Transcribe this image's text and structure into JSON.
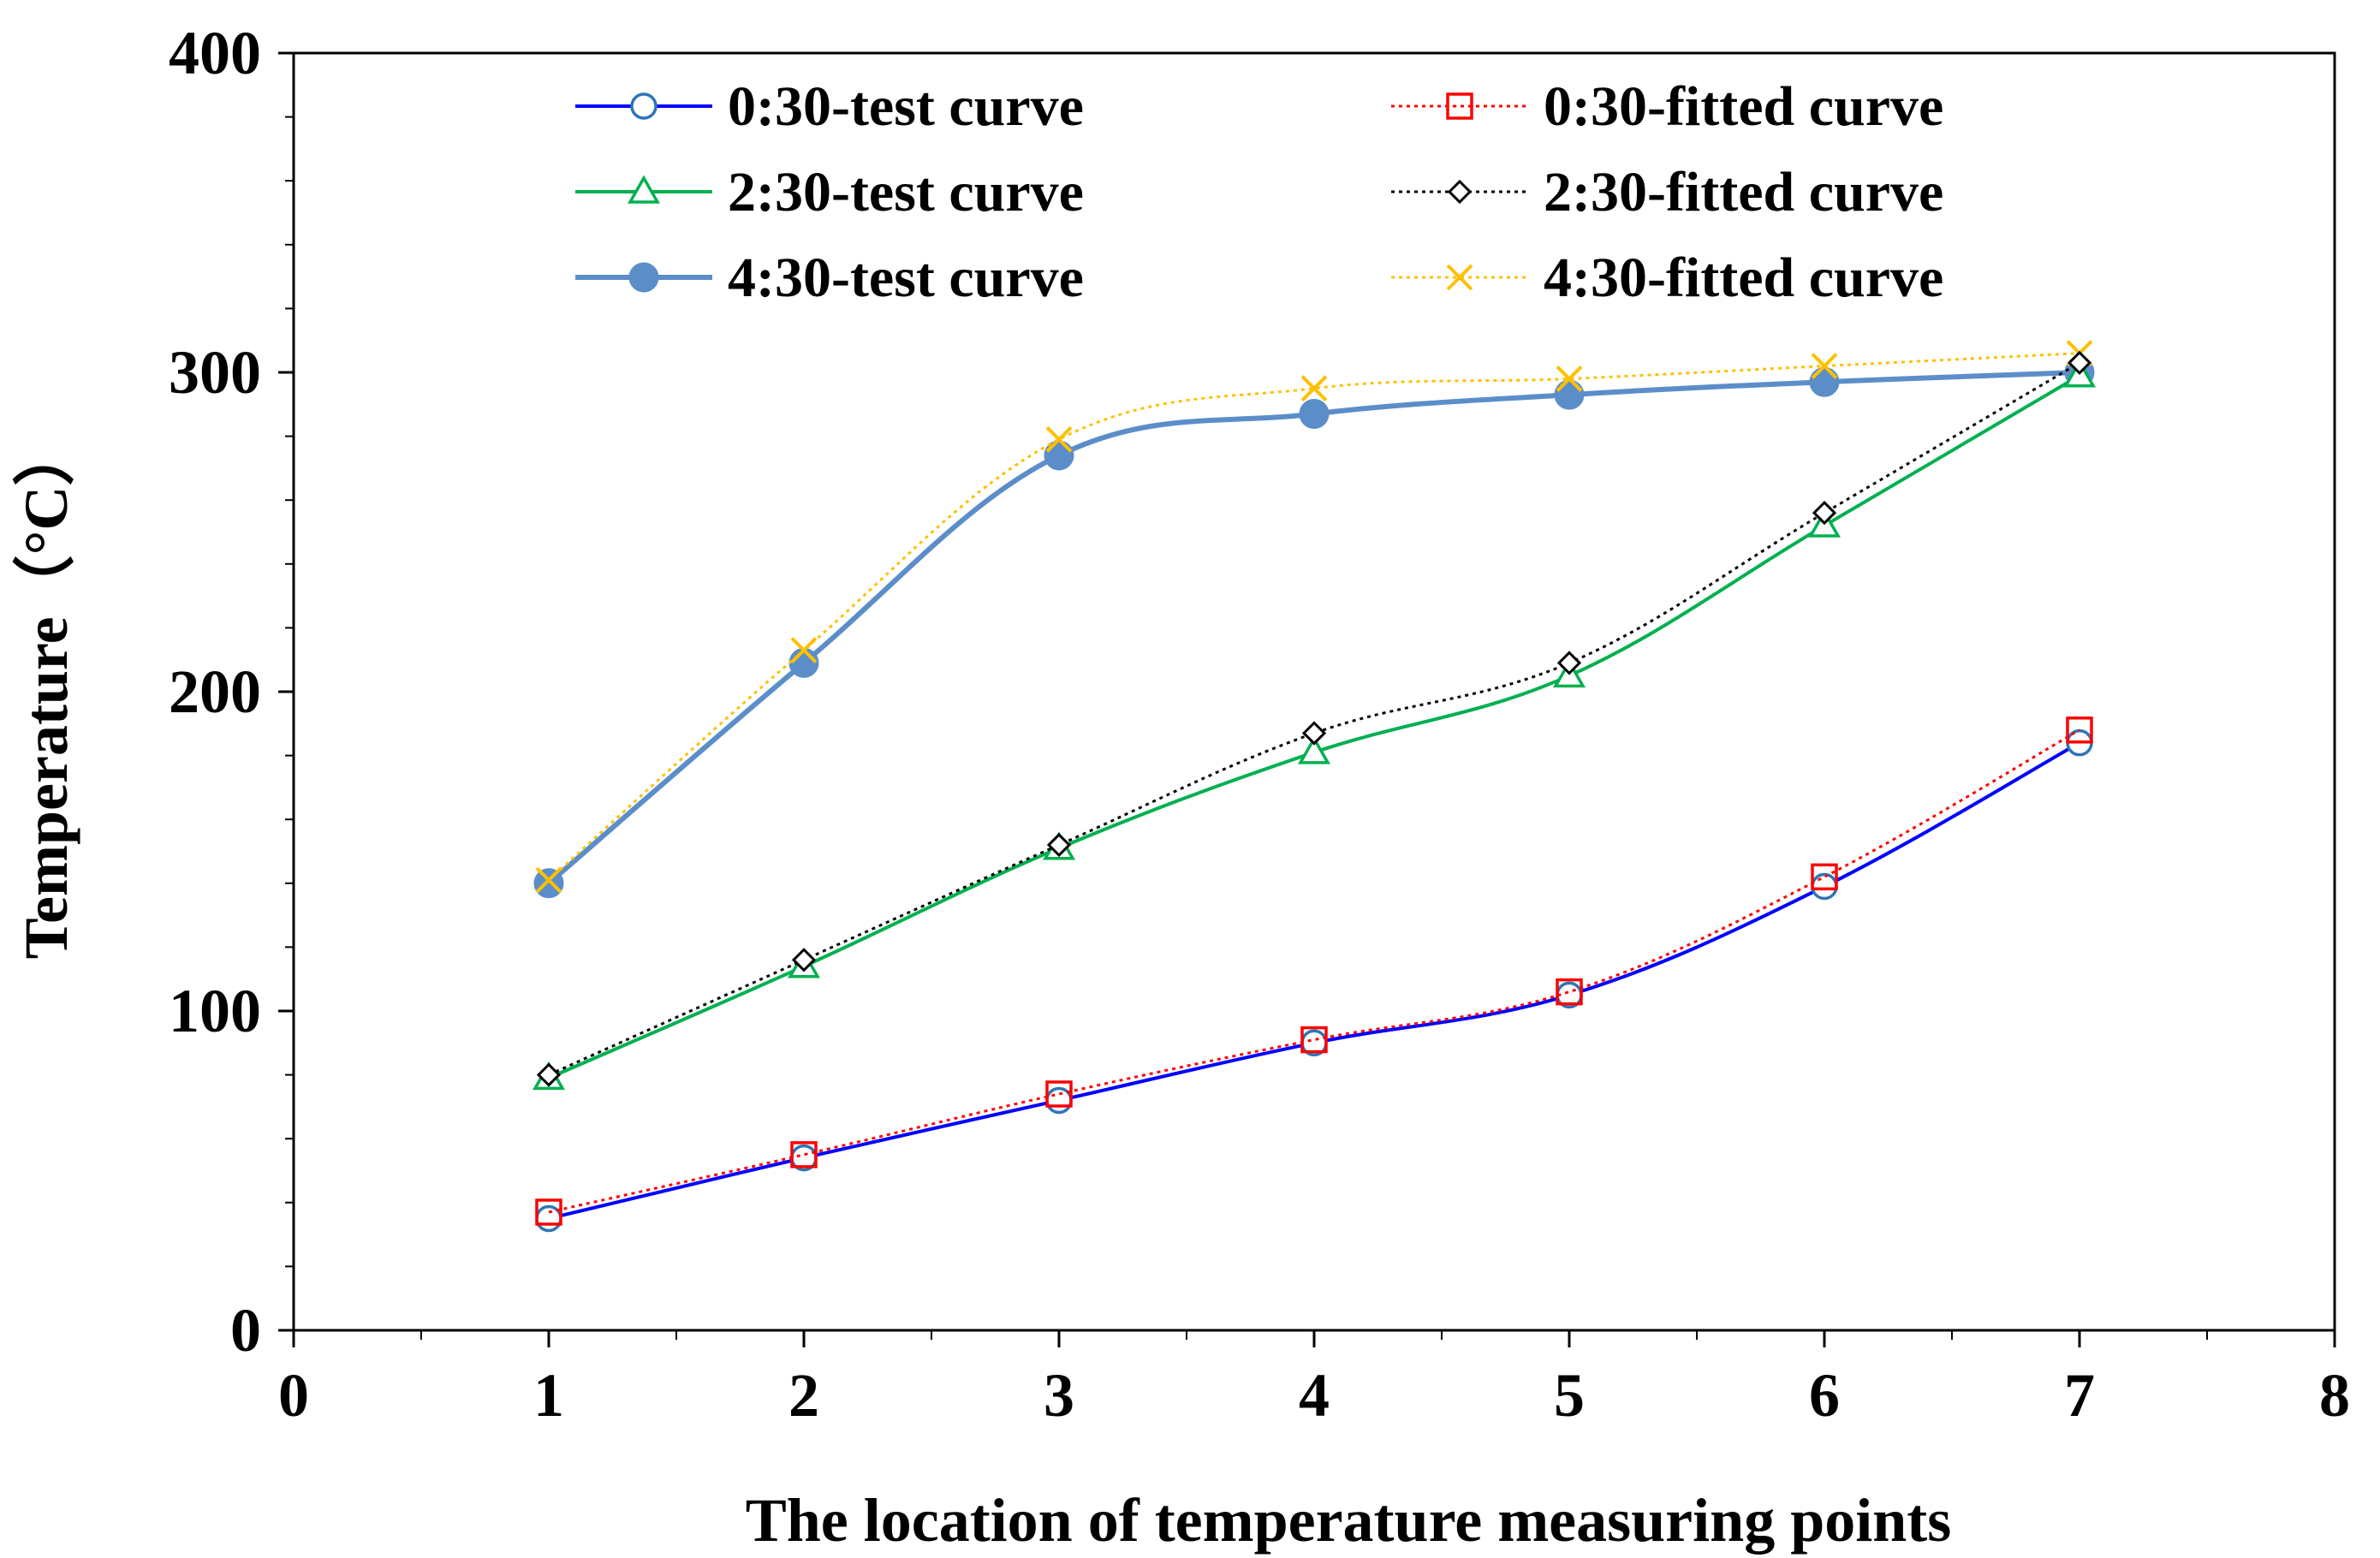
{
  "chart_data": {
    "type": "line",
    "title": "",
    "xlabel": "The location of temperature measuring points",
    "ylabel": "Temperature（°C）",
    "xlim": [
      0,
      8
    ],
    "ylim": [
      0,
      400
    ],
    "x_ticks": [
      "0",
      "1",
      "2",
      "3",
      "4",
      "5",
      "6",
      "7",
      "8"
    ],
    "y_ticks": [
      "0",
      "100",
      "200",
      "300",
      "400"
    ],
    "grid": false,
    "legend_position": "top",
    "x": [
      1,
      2,
      3,
      4,
      5,
      6,
      7
    ],
    "series": [
      {
        "name": "0:30-test curve",
        "values": [
          35,
          54,
          72,
          90,
          105,
          139,
          184
        ],
        "color": "#0000ff",
        "marker": "circle-open",
        "marker_color": "#2e75b6",
        "dash": "solid"
      },
      {
        "name": "0:30-fitted curve",
        "values": [
          37,
          55,
          74,
          91,
          106,
          142,
          188
        ],
        "color": "#ff0000",
        "marker": "square-open",
        "marker_color": "#ff0000",
        "dash": "dotted"
      },
      {
        "name": "2:30-test curve",
        "values": [
          79,
          114,
          151,
          181,
          205,
          252,
          299
        ],
        "color": "#00b050",
        "marker": "triangle-open",
        "marker_color": "#00b050",
        "dash": "solid"
      },
      {
        "name": "2:30-fitted curve",
        "values": [
          80,
          116,
          152,
          187,
          209,
          256,
          303
        ],
        "color": "#000000",
        "marker": "diamond-open",
        "marker_color": "#000000",
        "dash": "dotted"
      },
      {
        "name": "4:30-test curve",
        "values": [
          140,
          209,
          274,
          287,
          293,
          297,
          300
        ],
        "color": "#5b8ec9",
        "marker": "circle-filled",
        "marker_color": "#5b8ec9",
        "dash": "solid"
      },
      {
        "name": "4:30-fitted curve",
        "values": [
          141,
          213,
          279,
          295,
          298,
          302,
          306
        ],
        "color": "#ffc000",
        "marker": "x",
        "marker_color": "#ffc000",
        "dash": "dotted"
      }
    ]
  }
}
